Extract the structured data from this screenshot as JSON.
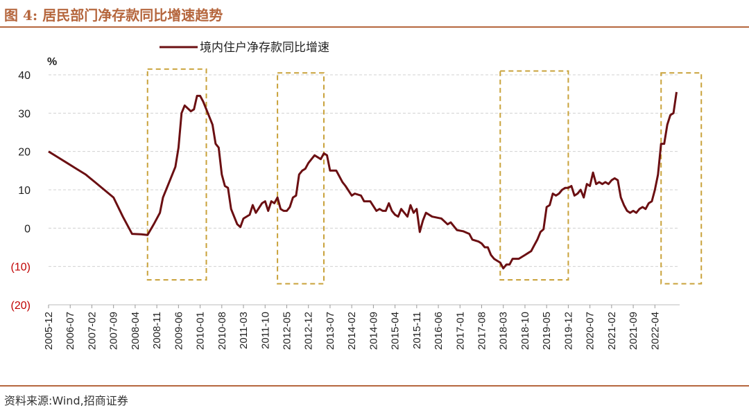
{
  "header": {
    "title": "图 4:  居民部门净存款同比增速趋势"
  },
  "footer": {
    "source": "资料来源:Wind,招商证券"
  },
  "colors": {
    "accent": "#b5663d",
    "line": "#6b0f12",
    "box": "#c9a23a",
    "negative_tick": "#c00000"
  },
  "chart_data": {
    "type": "line",
    "title": "",
    "ylabel": "%",
    "xlabel": "",
    "ylim": [
      -20,
      40
    ],
    "yticks": [
      40,
      30,
      20,
      10,
      0,
      -10,
      -20
    ],
    "ytick_labels": [
      "40",
      "30",
      "20",
      "10",
      "0",
      "(10)",
      "(20)"
    ],
    "grid": "horizontal dashed",
    "legend": "top-center",
    "x_tick_labels": [
      "2005-12",
      "2006-07",
      "2007-02",
      "2007-09",
      "2008-04",
      "2008-11",
      "2009-06",
      "2010-01",
      "2010-08",
      "2011-03",
      "2011-10",
      "2012-05",
      "2012-12",
      "2013-07",
      "2014-02",
      "2014-09",
      "2015-04",
      "2015-11",
      "2016-06",
      "2017-01",
      "2017-08",
      "2018-03",
      "2018-10",
      "2019-05",
      "2019-12",
      "2020-07",
      "2021-02",
      "2021-09",
      "2022-04"
    ],
    "series": [
      {
        "name": "境内住户净存款同比增速",
        "points": [
          [
            "2005-12",
            20
          ],
          [
            "2006-03",
            18.5
          ],
          [
            "2006-06",
            17
          ],
          [
            "2006-09",
            15.5
          ],
          [
            "2006-12",
            14
          ],
          [
            "2007-03",
            12
          ],
          [
            "2007-06",
            10
          ],
          [
            "2007-09",
            8
          ],
          [
            "2007-12",
            3
          ],
          [
            "2008-03",
            -1.5
          ],
          [
            "2008-06",
            -1.6
          ],
          [
            "2008-08",
            -1.8
          ],
          [
            "2008-10",
            1
          ],
          [
            "2008-12",
            4
          ],
          [
            "2009-01",
            8
          ],
          [
            "2009-03",
            12
          ],
          [
            "2009-05",
            16
          ],
          [
            "2009-06",
            21
          ],
          [
            "2009-07",
            30
          ],
          [
            "2009-08",
            32
          ],
          [
            "2009-10",
            30.5
          ],
          [
            "2009-11",
            31
          ],
          [
            "2009-12",
            34.5
          ],
          [
            "2010-01",
            34.5
          ],
          [
            "2010-02",
            33
          ],
          [
            "2010-03",
            31
          ],
          [
            "2010-05",
            27
          ],
          [
            "2010-06",
            22
          ],
          [
            "2010-07",
            21
          ],
          [
            "2010-08",
            14
          ],
          [
            "2010-09",
            11
          ],
          [
            "2010-10",
            10.5
          ],
          [
            "2010-11",
            5
          ],
          [
            "2010-12",
            3
          ],
          [
            "2011-01",
            1
          ],
          [
            "2011-02",
            0.3
          ],
          [
            "2011-03",
            2.5
          ],
          [
            "2011-05",
            3.5
          ],
          [
            "2011-06",
            6
          ],
          [
            "2011-07",
            4
          ],
          [
            "2011-09",
            6.5
          ],
          [
            "2011-10",
            7
          ],
          [
            "2011-11",
            4.5
          ],
          [
            "2011-12",
            7
          ],
          [
            "2012-01",
            6.5
          ],
          [
            "2012-02",
            8
          ],
          [
            "2012-03",
            5
          ],
          [
            "2012-04",
            4.5
          ],
          [
            "2012-05",
            4.5
          ],
          [
            "2012-06",
            5.5
          ],
          [
            "2012-07",
            8
          ],
          [
            "2012-08",
            8.5
          ],
          [
            "2012-09",
            14
          ],
          [
            "2012-10",
            15
          ],
          [
            "2012-11",
            15.5
          ],
          [
            "2012-12",
            17
          ],
          [
            "2013-02",
            19
          ],
          [
            "2013-04",
            18
          ],
          [
            "2013-05",
            19.5
          ],
          [
            "2013-06",
            19
          ],
          [
            "2013-07",
            15
          ],
          [
            "2013-09",
            15
          ],
          [
            "2013-11",
            12
          ],
          [
            "2013-12",
            11
          ],
          [
            "2014-02",
            8.5
          ],
          [
            "2014-03",
            9
          ],
          [
            "2014-05",
            8.5
          ],
          [
            "2014-06",
            7
          ],
          [
            "2014-08",
            7
          ],
          [
            "2014-10",
            4.5
          ],
          [
            "2014-11",
            5
          ],
          [
            "2014-12",
            4.5
          ],
          [
            "2015-01",
            4.5
          ],
          [
            "2015-02",
            6.5
          ],
          [
            "2015-03",
            4.5
          ],
          [
            "2015-04",
            3.5
          ],
          [
            "2015-05",
            3
          ],
          [
            "2015-06",
            5
          ],
          [
            "2015-07",
            4
          ],
          [
            "2015-08",
            3
          ],
          [
            "2015-09",
            6
          ],
          [
            "2015-10",
            4
          ],
          [
            "2015-11",
            5
          ],
          [
            "2015-12",
            -1
          ],
          [
            "2016-01",
            2
          ],
          [
            "2016-02",
            4
          ],
          [
            "2016-04",
            3
          ],
          [
            "2016-07",
            2.5
          ],
          [
            "2016-09",
            1
          ],
          [
            "2016-10",
            1.5
          ],
          [
            "2016-11",
            0.5
          ],
          [
            "2016-12",
            -0.5
          ],
          [
            "2017-02",
            -0.8
          ],
          [
            "2017-04",
            -1.5
          ],
          [
            "2017-05",
            -3
          ],
          [
            "2017-07",
            -3.5
          ],
          [
            "2017-08",
            -4
          ],
          [
            "2017-09",
            -5
          ],
          [
            "2017-10",
            -5
          ],
          [
            "2017-11",
            -7
          ],
          [
            "2017-12",
            -8
          ],
          [
            "2018-01",
            -8.5
          ],
          [
            "2018-02",
            -9
          ],
          [
            "2018-03",
            -10.5
          ],
          [
            "2018-04",
            -9.5
          ],
          [
            "2018-05",
            -9.5
          ],
          [
            "2018-06",
            -8
          ],
          [
            "2018-08",
            -8
          ],
          [
            "2018-10",
            -7
          ],
          [
            "2018-11",
            -6.5
          ],
          [
            "2018-12",
            -6
          ],
          [
            "2019-01",
            -4.5
          ],
          [
            "2019-02",
            -3
          ],
          [
            "2019-03",
            -1
          ],
          [
            "2019-04",
            -0.3
          ],
          [
            "2019-05",
            5.5
          ],
          [
            "2019-06",
            6
          ],
          [
            "2019-07",
            9
          ],
          [
            "2019-08",
            8.5
          ],
          [
            "2019-09",
            9
          ],
          [
            "2019-10",
            10
          ],
          [
            "2019-11",
            10.5
          ],
          [
            "2019-12",
            10.5
          ],
          [
            "2020-01",
            11
          ],
          [
            "2020-02",
            8.5
          ],
          [
            "2020-03",
            9
          ],
          [
            "2020-04",
            10
          ],
          [
            "2020-05",
            8
          ],
          [
            "2020-06",
            11.5
          ],
          [
            "2020-07",
            11
          ],
          [
            "2020-08",
            14.5
          ],
          [
            "2020-09",
            11.5
          ],
          [
            "2020-10",
            12
          ],
          [
            "2020-11",
            11.5
          ],
          [
            "2020-12",
            12
          ],
          [
            "2021-01",
            11.5
          ],
          [
            "2021-02",
            12.5
          ],
          [
            "2021-03",
            13
          ],
          [
            "2021-04",
            12.5
          ],
          [
            "2021-05",
            8
          ],
          [
            "2021-06",
            6
          ],
          [
            "2021-07",
            4.5
          ],
          [
            "2021-08",
            4
          ],
          [
            "2021-09",
            4.5
          ],
          [
            "2021-10",
            4
          ],
          [
            "2021-11",
            5
          ],
          [
            "2021-12",
            5.5
          ],
          [
            "2022-01",
            5
          ],
          [
            "2022-02",
            6.5
          ],
          [
            "2022-03",
            7
          ],
          [
            "2022-04",
            10
          ],
          [
            "2022-05",
            14
          ],
          [
            "2022-06",
            22
          ],
          [
            "2022-07",
            22
          ],
          [
            "2022-08",
            27
          ],
          [
            "2022-09",
            29.5
          ],
          [
            "2022-10",
            30
          ],
          [
            "2022-11",
            35.5
          ]
        ]
      }
    ],
    "highlight_boxes": [
      {
        "x_start": "2008-08",
        "x_end": "2010-03",
        "y_top": 41.5,
        "y_bottom": -13.5
      },
      {
        "x_start": "2012-02",
        "x_end": "2013-05",
        "y_top": 40.5,
        "y_bottom": -14.5
      },
      {
        "x_start": "2018-02",
        "x_end": "2019-12",
        "y_top": 41,
        "y_bottom": -13.5
      },
      {
        "x_start": "2022-06",
        "x_end": "2023-07",
        "y_top": 40.5,
        "y_bottom": -14.5
      }
    ]
  }
}
